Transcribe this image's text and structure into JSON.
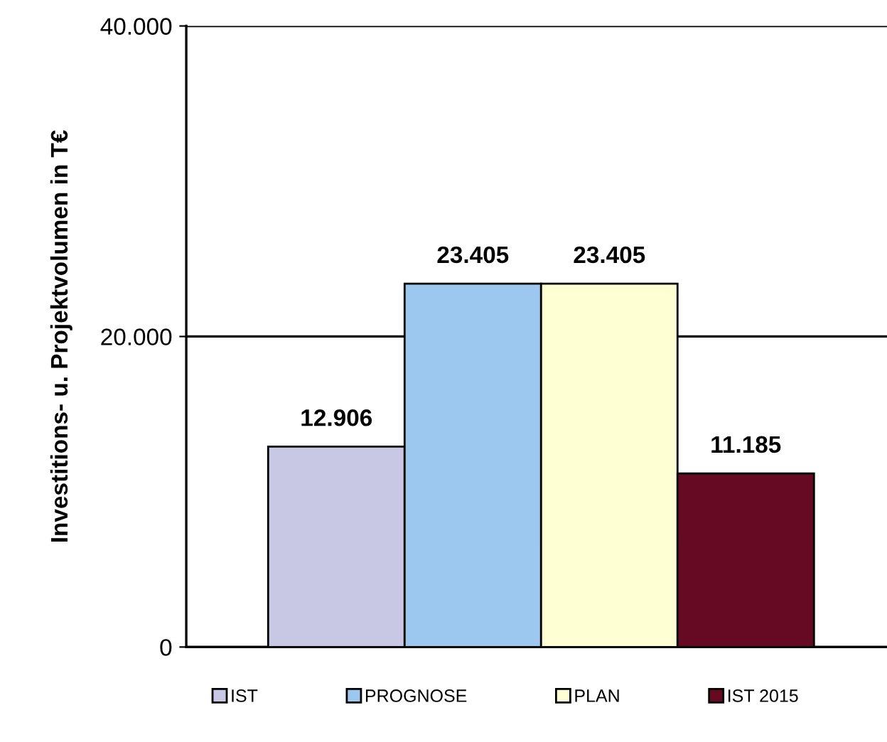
{
  "chart_data": {
    "type": "bar",
    "ylabel": "Investitions- u. Projektvolumen in T€",
    "categories": [
      null
    ],
    "series": [
      {
        "name": "IST",
        "color": "#c8c8e4",
        "values": [
          12906
        ],
        "value_labels": [
          "12.906"
        ]
      },
      {
        "name": "PROGNOSE",
        "color": "#9cc8ef",
        "values": [
          23405
        ],
        "value_labels": [
          "23.405"
        ]
      },
      {
        "name": "PLAN",
        "color": "#ffffd4",
        "values": [
          23405
        ],
        "value_labels": [
          "23.405"
        ]
      },
      {
        "name": "IST 2015",
        "color": "#650a22",
        "values": [
          11185
        ],
        "value_labels": [
          "11.185"
        ]
      }
    ],
    "ylim": [
      0,
      40000
    ],
    "yticks": [
      {
        "value": 0,
        "label": "0"
      },
      {
        "value": 20000,
        "label": "20.000"
      },
      {
        "value": 40000,
        "label": "40.000"
      }
    ],
    "grid": "y",
    "legend": "bottom",
    "tick_labels": "y"
  }
}
